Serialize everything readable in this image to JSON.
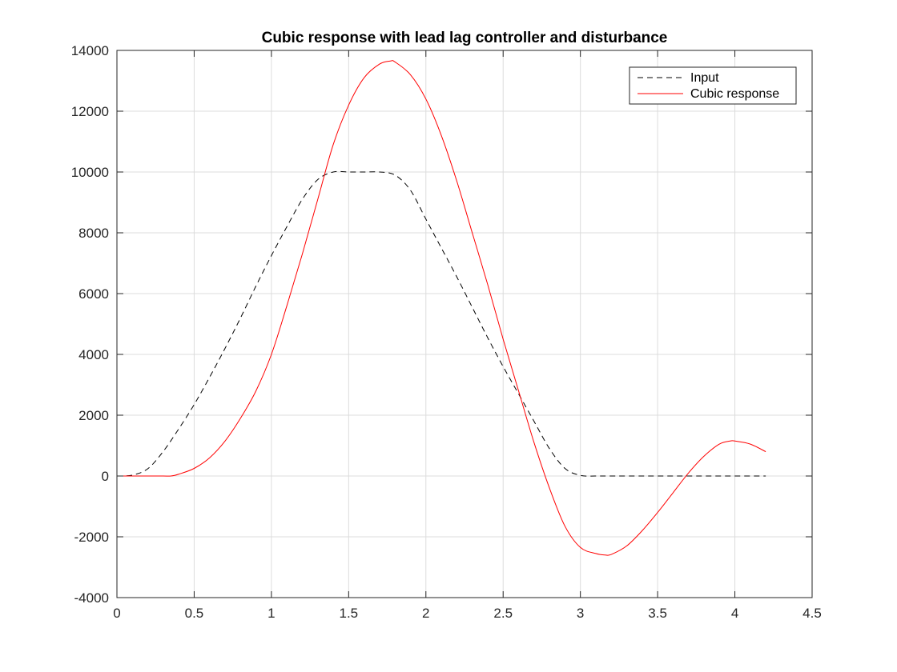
{
  "chart_data": {
    "type": "line",
    "title": "Cubic response with lead lag controller and disturbance",
    "xlabel": "",
    "ylabel": "",
    "xlim": [
      0,
      4.5
    ],
    "ylim": [
      -4000,
      14000
    ],
    "xticks": [
      0,
      0.5,
      1,
      1.5,
      2,
      2.5,
      3,
      3.5,
      4,
      4.5
    ],
    "xtick_labels": [
      "0",
      "0.5",
      "1",
      "1.5",
      "2",
      "2.5",
      "3",
      "3.5",
      "4",
      "4.5"
    ],
    "yticks": [
      -4000,
      -2000,
      0,
      2000,
      4000,
      6000,
      8000,
      10000,
      12000,
      14000
    ],
    "ytick_labels": [
      "-4000",
      "-2000",
      "0",
      "2000",
      "4000",
      "6000",
      "8000",
      "10000",
      "12000",
      "14000"
    ],
    "grid": true,
    "legend_position": "top-right",
    "series": [
      {
        "name": "Input",
        "color": "#000000",
        "style": "dashed",
        "x": [
          0,
          0.1,
          0.2,
          0.3,
          0.4,
          0.5,
          0.6,
          0.7,
          0.8,
          0.9,
          1.0,
          1.1,
          1.2,
          1.3,
          1.4,
          1.5,
          1.6,
          1.7,
          1.8,
          1.9,
          2.0,
          2.1,
          2.2,
          2.3,
          2.4,
          2.5,
          2.6,
          2.7,
          2.8,
          2.9,
          3.0,
          3.1,
          3.2,
          3.4,
          3.6,
          3.8,
          4.0,
          4.2
        ],
        "y": [
          0,
          30,
          240,
          810,
          1550,
          2350,
          3250,
          4200,
          5200,
          6250,
          7250,
          8200,
          9100,
          9750,
          10000,
          10000,
          10000,
          10000,
          9900,
          9400,
          8450,
          7500,
          6550,
          5550,
          4550,
          3600,
          2700,
          1800,
          900,
          250,
          20,
          0,
          0,
          0,
          0,
          0,
          0,
          0
        ]
      },
      {
        "name": "Cubic response",
        "color": "#ff0000",
        "style": "solid",
        "x": [
          0,
          0.1,
          0.2,
          0.3,
          0.35,
          0.4,
          0.5,
          0.6,
          0.7,
          0.8,
          0.9,
          1.0,
          1.1,
          1.2,
          1.3,
          1.4,
          1.5,
          1.6,
          1.7,
          1.77,
          1.8,
          1.9,
          2.0,
          2.1,
          2.2,
          2.3,
          2.4,
          2.5,
          2.6,
          2.7,
          2.8,
          2.9,
          3.0,
          3.1,
          3.16,
          3.2,
          3.3,
          3.4,
          3.5,
          3.6,
          3.7,
          3.8,
          3.9,
          3.97,
          4.0,
          4.1,
          4.2
        ],
        "y": [
          0,
          0,
          0,
          0,
          0,
          60,
          250,
          600,
          1150,
          1900,
          2800,
          4000,
          5600,
          7300,
          9100,
          10900,
          12200,
          13100,
          13550,
          13650,
          13620,
          13200,
          12400,
          11200,
          9700,
          8000,
          6300,
          4500,
          2800,
          1100,
          -400,
          -1650,
          -2350,
          -2550,
          -2600,
          -2580,
          -2300,
          -1800,
          -1200,
          -550,
          100,
          650,
          1050,
          1150,
          1150,
          1050,
          800
        ]
      }
    ]
  }
}
